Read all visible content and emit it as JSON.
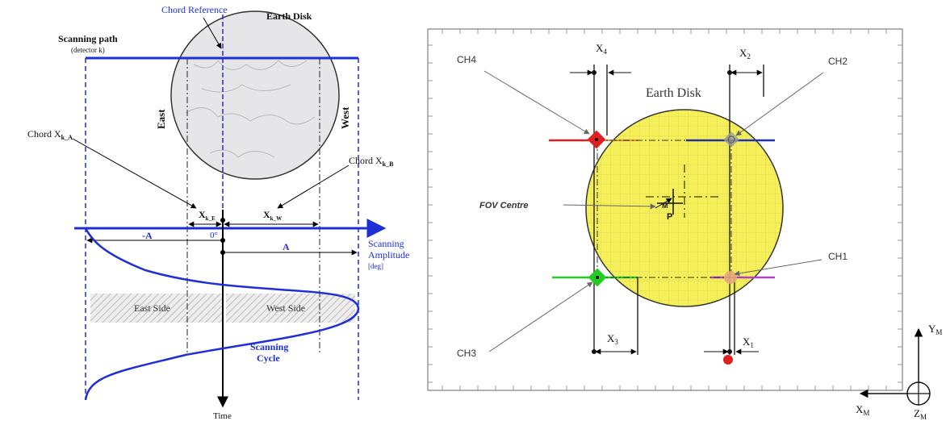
{
  "left_panel": {
    "chord_reference": "Chord Reference",
    "earth_disk": "Earth Disk",
    "scanning_path": "Scanning path",
    "detector": "(detector k)",
    "east": "East",
    "west": "West",
    "chord_a": "Chord X",
    "chord_a_sub": "k_A",
    "chord_b": "Chord X",
    "chord_b_sub": "k_B",
    "xke": "X",
    "xke_sub": "k_E",
    "xkw": "X",
    "xkw_sub": "k_W",
    "minus_a": "-A",
    "zero_deg": "0°",
    "a": "A",
    "scanning_amplitude": "Scanning",
    "scanning_amplitude2": "Amplitude",
    "deg": "[deg]",
    "east_side": "East Side",
    "west_side": "West Side",
    "scanning_cycle": "Scanning",
    "scanning_cycle2": "Cycle",
    "time": "Time",
    "colors": {
      "blue": "#1f2fd6",
      "disk_gray": "#e6e6e9"
    }
  },
  "right_panel": {
    "earth_disk": "Earth Disk",
    "ch4": "CH4",
    "ch2": "CH2",
    "ch1": "CH1",
    "ch3": "CH3",
    "fov_centre": "FOV Centre",
    "m": "M",
    "p": "P",
    "x4": "X",
    "x4_sub": "4",
    "x2": "X",
    "x2_sub": "2",
    "x3": "X",
    "x3_sub": "3",
    "x1": "X",
    "x1_sub": "1",
    "ym": "Y",
    "ym_sub": "M",
    "xm": "X",
    "xm_sub": "M",
    "zm": "Z",
    "zm_sub": "M",
    "colors": {
      "disk_yellow": "#f5f05a",
      "red": "#e02020",
      "green": "#22cc22",
      "purple": "#b040d0",
      "navy": "#2030c0",
      "gray": "#888888"
    }
  }
}
